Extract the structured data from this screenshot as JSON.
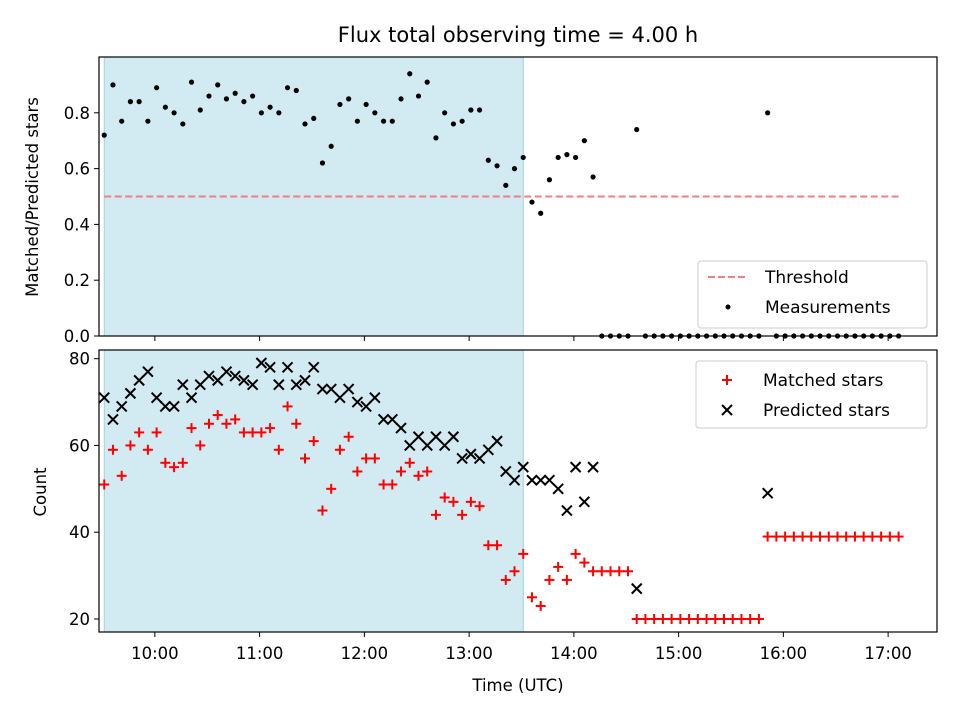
{
  "title": "Flux total observing time = 4.00 h",
  "chart_data": [
    {
      "type": "scatter",
      "panel": "top",
      "ylabel": "Matched/Predicted stars",
      "xlabel": "",
      "xlim": [
        "09:28",
        "17:28"
      ],
      "ylim": [
        0,
        1.0
      ],
      "yticks": [
        0.0,
        0.2,
        0.4,
        0.6,
        0.8
      ],
      "ytick_labels": [
        "0.0",
        "0.2",
        "0.4",
        "0.6",
        "0.8"
      ],
      "shaded_region": {
        "x": [
          "09:31",
          "13:31"
        ],
        "color": "#add8e6"
      },
      "legend_placement": "bottom-right",
      "grid": false,
      "series": [
        {
          "name": "Threshold",
          "style": "dashed-line",
          "color": "#f08080",
          "x": [
            "09:31",
            "17:06"
          ],
          "y": [
            0.5,
            0.5
          ]
        },
        {
          "name": "Measurements",
          "style": "dot",
          "color": "#000000",
          "points": [
            [
              "09:31",
              0.72
            ],
            [
              "09:36",
              0.9
            ],
            [
              "09:41",
              0.77
            ],
            [
              "09:46",
              0.84
            ],
            [
              "09:51",
              0.84
            ],
            [
              "09:56",
              0.77
            ],
            [
              "10:01",
              0.89
            ],
            [
              "10:06",
              0.82
            ],
            [
              "10:11",
              0.8
            ],
            [
              "10:16",
              0.76
            ],
            [
              "10:21",
              0.91
            ],
            [
              "10:26",
              0.81
            ],
            [
              "10:31",
              0.86
            ],
            [
              "10:36",
              0.9
            ],
            [
              "10:41",
              0.85
            ],
            [
              "10:46",
              0.87
            ],
            [
              "10:51",
              0.84
            ],
            [
              "10:56",
              0.86
            ],
            [
              "11:01",
              0.8
            ],
            [
              "11:06",
              0.82
            ],
            [
              "11:11",
              0.8
            ],
            [
              "11:16",
              0.89
            ],
            [
              "11:21",
              0.88
            ],
            [
              "11:26",
              0.76
            ],
            [
              "11:31",
              0.78
            ],
            [
              "11:36",
              0.62
            ],
            [
              "11:41",
              0.68
            ],
            [
              "11:46",
              0.83
            ],
            [
              "11:51",
              0.85
            ],
            [
              "11:56",
              0.77
            ],
            [
              "12:01",
              0.83
            ],
            [
              "12:06",
              0.8
            ],
            [
              "12:11",
              0.77
            ],
            [
              "12:16",
              0.77
            ],
            [
              "12:21",
              0.85
            ],
            [
              "12:26",
              0.94
            ],
            [
              "12:31",
              0.86
            ],
            [
              "12:36",
              0.91
            ],
            [
              "12:41",
              0.71
            ],
            [
              "12:46",
              0.8
            ],
            [
              "12:51",
              0.76
            ],
            [
              "12:56",
              0.77
            ],
            [
              "13:01",
              0.81
            ],
            [
              "13:06",
              0.81
            ],
            [
              "13:11",
              0.63
            ],
            [
              "13:16",
              0.61
            ],
            [
              "13:21",
              0.54
            ],
            [
              "13:26",
              0.6
            ],
            [
              "13:31",
              0.64
            ],
            [
              "13:36",
              0.48
            ],
            [
              "13:41",
              0.44
            ],
            [
              "13:46",
              0.56
            ],
            [
              "13:51",
              0.64
            ],
            [
              "13:56",
              0.65
            ],
            [
              "14:01",
              0.64
            ],
            [
              "14:06",
              0.7
            ],
            [
              "14:11",
              0.57
            ],
            [
              "14:16",
              0.0
            ],
            [
              "14:21",
              0.0
            ],
            [
              "14:26",
              0.0
            ],
            [
              "14:31",
              0.0
            ],
            [
              "14:36",
              0.74
            ],
            [
              "14:41",
              0.0
            ],
            [
              "14:46",
              0.0
            ],
            [
              "14:51",
              0.0
            ],
            [
              "14:56",
              0.0
            ],
            [
              "15:01",
              0.0
            ],
            [
              "15:06",
              0.0
            ],
            [
              "15:11",
              0.0
            ],
            [
              "15:16",
              0.0
            ],
            [
              "15:21",
              0.0
            ],
            [
              "15:26",
              0.0
            ],
            [
              "15:31",
              0.0
            ],
            [
              "15:36",
              0.0
            ],
            [
              "15:41",
              0.0
            ],
            [
              "15:46",
              0.0
            ],
            [
              "15:51",
              0.8
            ],
            [
              "15:56",
              0.0
            ],
            [
              "16:01",
              0.0
            ],
            [
              "16:06",
              0.0
            ],
            [
              "16:11",
              0.0
            ],
            [
              "16:16",
              0.0
            ],
            [
              "16:21",
              0.0
            ],
            [
              "16:26",
              0.0
            ],
            [
              "16:31",
              0.0
            ],
            [
              "16:36",
              0.0
            ],
            [
              "16:41",
              0.0
            ],
            [
              "16:46",
              0.0
            ],
            [
              "16:51",
              0.0
            ],
            [
              "16:56",
              0.0
            ],
            [
              "17:01",
              0.0
            ],
            [
              "17:06",
              0.0
            ]
          ]
        }
      ]
    },
    {
      "type": "scatter",
      "panel": "bottom",
      "ylabel": "Count",
      "xlabel": "Time (UTC)",
      "xlim": [
        "09:28",
        "17:28"
      ],
      "ylim": [
        17,
        82
      ],
      "yticks": [
        20,
        40,
        60,
        80
      ],
      "ytick_labels": [
        "20",
        "40",
        "60",
        "80"
      ],
      "xticks": [
        "10:00",
        "11:00",
        "12:00",
        "13:00",
        "14:00",
        "15:00",
        "16:00",
        "17:00"
      ],
      "shaded_region": {
        "x": [
          "09:31",
          "13:31"
        ],
        "color": "#add8e6"
      },
      "legend_placement": "top-right",
      "grid": false,
      "series": [
        {
          "name": "Matched stars",
          "style": "plus",
          "color": "#ff0000",
          "points": [
            [
              "09:31",
              51
            ],
            [
              "09:36",
              59
            ],
            [
              "09:41",
              53
            ],
            [
              "09:46",
              60
            ],
            [
              "09:51",
              63
            ],
            [
              "09:56",
              59
            ],
            [
              "10:01",
              63
            ],
            [
              "10:06",
              56
            ],
            [
              "10:11",
              55
            ],
            [
              "10:16",
              56
            ],
            [
              "10:21",
              64
            ],
            [
              "10:26",
              60
            ],
            [
              "10:31",
              65
            ],
            [
              "10:36",
              67
            ],
            [
              "10:41",
              65
            ],
            [
              "10:46",
              66
            ],
            [
              "10:51",
              63
            ],
            [
              "10:56",
              63
            ],
            [
              "11:01",
              63
            ],
            [
              "11:06",
              64
            ],
            [
              "11:11",
              59
            ],
            [
              "11:16",
              69
            ],
            [
              "11:21",
              65
            ],
            [
              "11:26",
              57
            ],
            [
              "11:31",
              61
            ],
            [
              "11:36",
              45
            ],
            [
              "11:41",
              50
            ],
            [
              "11:46",
              59
            ],
            [
              "11:51",
              62
            ],
            [
              "11:56",
              54
            ],
            [
              "12:01",
              57
            ],
            [
              "12:06",
              57
            ],
            [
              "12:11",
              51
            ],
            [
              "12:16",
              51
            ],
            [
              "12:21",
              54
            ],
            [
              "12:26",
              56
            ],
            [
              "12:31",
              53
            ],
            [
              "12:36",
              54
            ],
            [
              "12:41",
              44
            ],
            [
              "12:46",
              48
            ],
            [
              "12:51",
              47
            ],
            [
              "12:56",
              44
            ],
            [
              "13:01",
              47
            ],
            [
              "13:06",
              46
            ],
            [
              "13:11",
              37
            ],
            [
              "13:16",
              37
            ],
            [
              "13:21",
              29
            ],
            [
              "13:26",
              31
            ],
            [
              "13:31",
              35
            ],
            [
              "13:36",
              25
            ],
            [
              "13:41",
              23
            ],
            [
              "13:46",
              29
            ],
            [
              "13:51",
              32
            ],
            [
              "13:56",
              29
            ],
            [
              "14:01",
              35
            ],
            [
              "14:06",
              33
            ],
            [
              "14:11",
              31
            ],
            [
              "14:16",
              31
            ],
            [
              "14:21",
              31
            ],
            [
              "14:26",
              31
            ],
            [
              "14:31",
              31
            ],
            [
              "14:36",
              20
            ],
            [
              "14:41",
              20
            ],
            [
              "14:46",
              20
            ],
            [
              "14:51",
              20
            ],
            [
              "14:56",
              20
            ],
            [
              "15:01",
              20
            ],
            [
              "15:06",
              20
            ],
            [
              "15:11",
              20
            ],
            [
              "15:16",
              20
            ],
            [
              "15:21",
              20
            ],
            [
              "15:26",
              20
            ],
            [
              "15:31",
              20
            ],
            [
              "15:36",
              20
            ],
            [
              "15:41",
              20
            ],
            [
              "15:46",
              20
            ],
            [
              "15:51",
              39
            ],
            [
              "15:56",
              39
            ],
            [
              "16:01",
              39
            ],
            [
              "16:06",
              39
            ],
            [
              "16:11",
              39
            ],
            [
              "16:16",
              39
            ],
            [
              "16:21",
              39
            ],
            [
              "16:26",
              39
            ],
            [
              "16:31",
              39
            ],
            [
              "16:36",
              39
            ],
            [
              "16:41",
              39
            ],
            [
              "16:46",
              39
            ],
            [
              "16:51",
              39
            ],
            [
              "16:56",
              39
            ],
            [
              "17:01",
              39
            ],
            [
              "17:06",
              39
            ]
          ]
        },
        {
          "name": "Predicted stars",
          "style": "x",
          "color": "#000000",
          "points": [
            [
              "09:31",
              71
            ],
            [
              "09:36",
              66
            ],
            [
              "09:41",
              69
            ],
            [
              "09:46",
              72
            ],
            [
              "09:51",
              75
            ],
            [
              "09:56",
              77
            ],
            [
              "10:01",
              71
            ],
            [
              "10:06",
              69
            ],
            [
              "10:11",
              69
            ],
            [
              "10:16",
              74
            ],
            [
              "10:21",
              71
            ],
            [
              "10:26",
              74
            ],
            [
              "10:31",
              76
            ],
            [
              "10:36",
              75
            ],
            [
              "10:41",
              77
            ],
            [
              "10:46",
              76
            ],
            [
              "10:51",
              75
            ],
            [
              "10:56",
              74
            ],
            [
              "11:01",
              79
            ],
            [
              "11:06",
              78
            ],
            [
              "11:11",
              74
            ],
            [
              "11:16",
              78
            ],
            [
              "11:21",
              74
            ],
            [
              "11:26",
              75
            ],
            [
              "11:31",
              78
            ],
            [
              "11:36",
              73
            ],
            [
              "11:41",
              73
            ],
            [
              "11:46",
              71
            ],
            [
              "11:51",
              73
            ],
            [
              "11:56",
              70
            ],
            [
              "12:01",
              69
            ],
            [
              "12:06",
              71
            ],
            [
              "12:11",
              66
            ],
            [
              "12:16",
              66
            ],
            [
              "12:21",
              64
            ],
            [
              "12:26",
              60
            ],
            [
              "12:31",
              62
            ],
            [
              "12:36",
              60
            ],
            [
              "12:41",
              62
            ],
            [
              "12:46",
              60
            ],
            [
              "12:51",
              62
            ],
            [
              "12:56",
              57
            ],
            [
              "13:01",
              58
            ],
            [
              "13:06",
              57
            ],
            [
              "13:11",
              59
            ],
            [
              "13:16",
              61
            ],
            [
              "13:21",
              54
            ],
            [
              "13:26",
              52
            ],
            [
              "13:31",
              55
            ],
            [
              "13:36",
              52
            ],
            [
              "13:41",
              52
            ],
            [
              "13:46",
              52
            ],
            [
              "13:51",
              50
            ],
            [
              "13:56",
              45
            ],
            [
              "14:01",
              55
            ],
            [
              "14:06",
              47
            ],
            [
              "14:11",
              55
            ],
            [
              "14:36",
              27
            ],
            [
              "15:51",
              49
            ]
          ]
        }
      ]
    }
  ]
}
